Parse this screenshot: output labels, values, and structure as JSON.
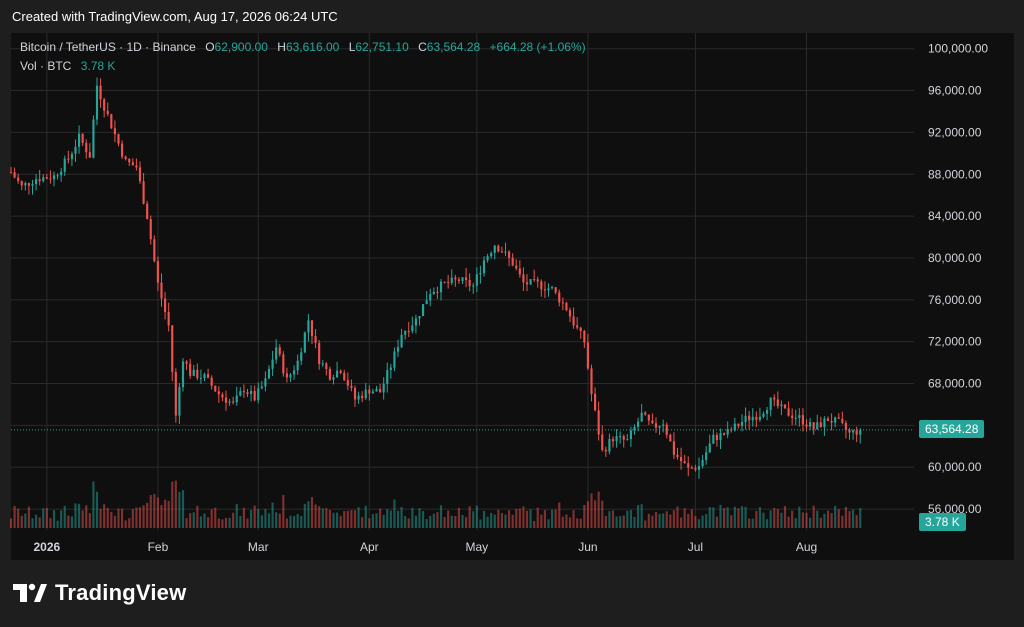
{
  "header": {
    "created_with": "Created with TradingView.com, Aug 17, 2026 06:24 UTC"
  },
  "legend": {
    "symbol": "Bitcoin / TetherUS · 1D · Binance",
    "o_label": "O",
    "o_value": "62,900.00",
    "h_label": "H",
    "h_value": "63,616.00",
    "l_label": "L",
    "l_value": "62,751.10",
    "c_label": "C",
    "c_value": "63,564.28",
    "change": "+664.28 (+1.06%)",
    "vol_label": "Vol · BTC",
    "vol_value": "3.78 K"
  },
  "tags": {
    "price": "63,564.28",
    "volume": "3.78 K"
  },
  "logo": {
    "text": "TradingView"
  },
  "colors": {
    "up": "#26a69a",
    "down": "#ef5350",
    "background": "#0f0f0f",
    "grid": "#2a2a2a"
  },
  "chart_data": {
    "type": "candlestick",
    "title": "Bitcoin / TetherUS · 1D · Binance",
    "y_axis": {
      "position": "right",
      "ticks": [
        100000,
        96000,
        92000,
        88000,
        84000,
        80000,
        76000,
        72000,
        68000,
        64000,
        60000,
        56000
      ],
      "tick_labels": [
        "100,000.00",
        "96,000.00",
        "92,000.00",
        "88,000.00",
        "84,000.00",
        "80,000.00",
        "76,000.00",
        "72,000.00",
        "68,000.00",
        "64,000.00",
        "60,000.00",
        "56,000.00"
      ],
      "range": [
        54000,
        101500
      ]
    },
    "x_axis": {
      "ticks": [
        "2026",
        "Feb",
        "Mar",
        "Apr",
        "May",
        "Jun",
        "Jul",
        "Aug"
      ],
      "tick_dates": [
        "2026-01-01",
        "2026-02-01",
        "2026-03-01",
        "2026-04-01",
        "2026-05-01",
        "2026-06-01",
        "2026-07-01",
        "2026-08-01"
      ],
      "range": [
        "2025-12-22",
        "2026-08-31"
      ]
    },
    "series_close_path": [
      [
        "2025-12-22",
        88200
      ],
      [
        "2025-12-25",
        86800
      ],
      [
        "2025-12-29",
        87600
      ],
      [
        "2026-01-03",
        87800
      ],
      [
        "2026-01-07",
        89500
      ],
      [
        "2026-01-10",
        91500
      ],
      [
        "2026-01-13",
        89800
      ],
      [
        "2026-01-15",
        96500
      ],
      [
        "2026-01-17",
        94500
      ],
      [
        "2026-01-20",
        91800
      ],
      [
        "2026-01-23",
        89200
      ],
      [
        "2026-01-26",
        88700
      ],
      [
        "2026-01-29",
        84000
      ],
      [
        "2026-02-01",
        77500
      ],
      [
        "2026-02-04",
        73500
      ],
      [
        "2026-02-06",
        64800
      ],
      [
        "2026-02-08",
        70500
      ],
      [
        "2026-02-10",
        69000
      ],
      [
        "2026-02-14",
        68600
      ],
      [
        "2026-02-18",
        67000
      ],
      [
        "2026-02-22",
        66000
      ],
      [
        "2026-02-25",
        67500
      ],
      [
        "2026-02-28",
        66600
      ],
      [
        "2026-03-03",
        68200
      ],
      [
        "2026-03-06",
        71500
      ],
      [
        "2026-03-09",
        68300
      ],
      [
        "2026-03-12",
        70100
      ],
      [
        "2026-03-15",
        74100
      ],
      [
        "2026-03-18",
        70300
      ],
      [
        "2026-03-21",
        68800
      ],
      [
        "2026-03-24",
        69400
      ],
      [
        "2026-03-28",
        66500
      ],
      [
        "2026-04-01",
        67400
      ],
      [
        "2026-04-04",
        67200
      ],
      [
        "2026-04-07",
        69700
      ],
      [
        "2026-04-10",
        72800
      ],
      [
        "2026-04-14",
        74100
      ],
      [
        "2026-04-18",
        76800
      ],
      [
        "2026-04-22",
        77500
      ],
      [
        "2026-04-26",
        77900
      ],
      [
        "2026-04-30",
        77300
      ],
      [
        "2026-05-03",
        79800
      ],
      [
        "2026-05-06",
        81300
      ],
      [
        "2026-05-08",
        80700
      ],
      [
        "2026-05-11",
        79500
      ],
      [
        "2026-05-14",
        77600
      ],
      [
        "2026-05-18",
        77500
      ],
      [
        "2026-05-22",
        77000
      ],
      [
        "2026-05-26",
        75200
      ],
      [
        "2026-05-28",
        73800
      ],
      [
        "2026-05-31",
        72000
      ],
      [
        "2026-06-02",
        67000
      ],
      [
        "2026-06-05",
        61500
      ],
      [
        "2026-06-08",
        62800
      ],
      [
        "2026-06-12",
        62500
      ],
      [
        "2026-06-16",
        65000
      ],
      [
        "2026-06-19",
        63800
      ],
      [
        "2026-06-22",
        64300
      ],
      [
        "2026-06-25",
        61400
      ],
      [
        "2026-06-29",
        59800
      ],
      [
        "2026-07-02",
        60100
      ],
      [
        "2026-07-06",
        62800
      ],
      [
        "2026-07-10",
        63300
      ],
      [
        "2026-07-15",
        64600
      ],
      [
        "2026-07-19",
        65100
      ],
      [
        "2026-07-22",
        66300
      ],
      [
        "2026-07-26",
        65300
      ],
      [
        "2026-07-30",
        64700
      ],
      [
        "2026-08-03",
        63700
      ],
      [
        "2026-08-07",
        64600
      ],
      [
        "2026-08-10",
        64200
      ],
      [
        "2026-08-13",
        63200
      ],
      [
        "2026-08-16",
        63564.28
      ]
    ],
    "last_close": 63564.28,
    "last_volume_btc": 3780
  }
}
